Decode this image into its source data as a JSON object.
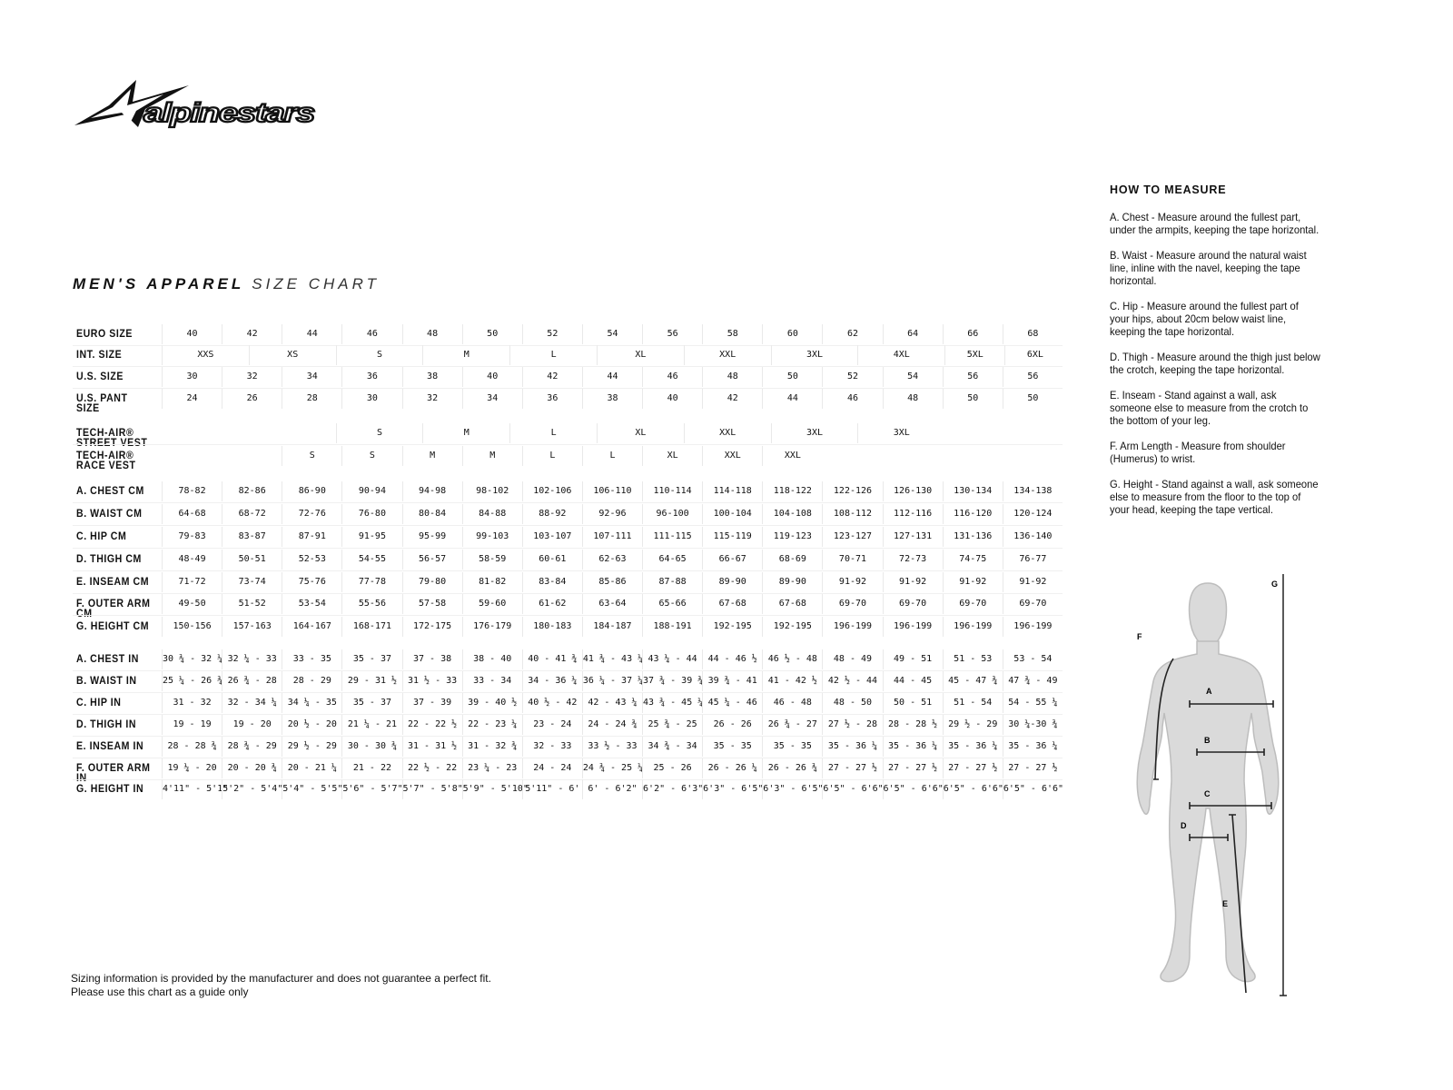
{
  "logo": {
    "text": "alpinestars"
  },
  "title": {
    "bold": "MEN'S APPAREL",
    "light": "SIZE CHART"
  },
  "size_rows": [
    {
      "label": "EURO SIZE",
      "grid": "euro",
      "values": [
        "40",
        "42",
        "44",
        "46",
        "48",
        "50",
        "52",
        "54",
        "56",
        "58",
        "60",
        "62",
        "64",
        "66",
        "68"
      ]
    },
    {
      "label": "INT. SIZE",
      "grid": "int",
      "values": [
        "XXS",
        "XS",
        "S",
        "M",
        "L",
        "XL",
        "XXL",
        "3XL",
        "4XL",
        "5XL",
        "6XL"
      ]
    },
    {
      "label": "U.S. SIZE",
      "grid": "euro",
      "values": [
        "30",
        "32",
        "34",
        "36",
        "38",
        "40",
        "42",
        "44",
        "46",
        "48",
        "50",
        "52",
        "54",
        "56",
        "56"
      ]
    },
    {
      "label": "U.S. PANT SIZE",
      "grid": "euro",
      "values": [
        "24",
        "26",
        "28",
        "30",
        "32",
        "34",
        "36",
        "38",
        "40",
        "42",
        "44",
        "46",
        "48",
        "50",
        "50"
      ]
    }
  ],
  "vest_rows": [
    {
      "label": "TECH-AIR® STREET VEST",
      "grid": "int",
      "values": [
        "",
        "",
        "S",
        "M",
        "L",
        "XL",
        "XXL",
        "3XL",
        "3XL"
      ]
    },
    {
      "label": "TECH-AIR® RACE VEST",
      "grid": "euro",
      "values": [
        "",
        "",
        "S",
        "S",
        "M",
        "M",
        "L",
        "L",
        "XL",
        "XXL",
        "XXL"
      ]
    }
  ],
  "cm_rows": [
    {
      "label": "A. CHEST CM",
      "values": [
        "78-82",
        "82-86",
        "86-90",
        "90-94",
        "94-98",
        "98-102",
        "102-106",
        "106-110",
        "110-114",
        "114-118",
        "118-122",
        "122-126",
        "126-130",
        "130-134",
        "134-138"
      ]
    },
    {
      "label": "B. WAIST CM",
      "values": [
        "64-68",
        "68-72",
        "72-76",
        "76-80",
        "80-84",
        "84-88",
        "88-92",
        "92-96",
        "96-100",
        "100-104",
        "104-108",
        "108-112",
        "112-116",
        "116-120",
        "120-124"
      ]
    },
    {
      "label": "C. HIP CM",
      "values": [
        "79-83",
        "83-87",
        "87-91",
        "91-95",
        "95-99",
        "99-103",
        "103-107",
        "107-111",
        "111-115",
        "115-119",
        "119-123",
        "123-127",
        "127-131",
        "131-136",
        "136-140"
      ]
    },
    {
      "label": "D. THIGH CM",
      "values": [
        "48-49",
        "50-51",
        "52-53",
        "54-55",
        "56-57",
        "58-59",
        "60-61",
        "62-63",
        "64-65",
        "66-67",
        "68-69",
        "70-71",
        "72-73",
        "74-75",
        "76-77"
      ]
    },
    {
      "label": "E. INSEAM CM",
      "values": [
        "71-72",
        "73-74",
        "75-76",
        "77-78",
        "79-80",
        "81-82",
        "83-84",
        "85-86",
        "87-88",
        "89-90",
        "89-90",
        "91-92",
        "91-92",
        "91-92",
        "91-92"
      ]
    },
    {
      "label": "F. OUTER ARM CM",
      "values": [
        "49-50",
        "51-52",
        "53-54",
        "55-56",
        "57-58",
        "59-60",
        "61-62",
        "63-64",
        "65-66",
        "67-68",
        "67-68",
        "69-70",
        "69-70",
        "69-70",
        "69-70"
      ]
    },
    {
      "label": "G. HEIGHT CM",
      "values": [
        "150-156",
        "157-163",
        "164-167",
        "168-171",
        "172-175",
        "176-179",
        "180-183",
        "184-187",
        "188-191",
        "192-195",
        "192-195",
        "196-199",
        "196-199",
        "196-199",
        "196-199"
      ]
    }
  ],
  "in_rows": [
    {
      "label": "A. CHEST IN",
      "values": [
        "30 ¾ - 32 ¼",
        "32 ¼ - 33",
        "33 - 35",
        "35 - 37",
        "37 - 38",
        "38 - 40",
        "40 - 41 ¾",
        "41 ¾ - 43 ¼",
        "43 ¼ - 44",
        "44 - 46 ½",
        "46 ½ - 48",
        "48 - 49",
        "49 - 51",
        "51 - 53",
        "53 - 54"
      ]
    },
    {
      "label": "B. WAIST IN",
      "values": [
        "25 ¼ - 26 ¾",
        "26 ¾ - 28",
        "28 - 29",
        "29 - 31 ½",
        "31 ½ - 33",
        "33 - 34",
        "34 - 36 ¼",
        "36 ¼ - 37 ¼",
        "37 ¾ - 39 ¾",
        "39 ¾ - 41",
        "41 - 42 ½",
        "42 ½ - 44",
        "44 - 45",
        "45 - 47 ¾",
        "47 ¾ - 49"
      ]
    },
    {
      "label": "C. HIP IN",
      "values": [
        "31 - 32",
        "32 - 34 ¼",
        "34 ¼ - 35",
        "35 - 37",
        "37 - 39",
        "39 - 40 ½",
        "40 ½ - 42",
        "42 - 43 ¼",
        "43 ¾ - 45 ¼",
        "45 ¼ - 46",
        "46 - 48",
        "48 - 50",
        "50 - 51",
        "51 - 54",
        "54 - 55 ¼"
      ]
    },
    {
      "label": "D. THIGH IN",
      "values": [
        "19 - 19",
        "19 - 20",
        "20 ½ - 20",
        "21 ¼ - 21",
        "22 - 22 ½",
        "22 - 23 ¼",
        "23 - 24",
        "24 - 24 ¾",
        "25 ¾ - 25",
        "26 - 26",
        "26 ¾ - 27",
        "27 ½ - 28",
        "28 - 28 ½",
        "29 ½ - 29",
        "30 ¼-30 ¾"
      ]
    },
    {
      "label": "E. INSEAM IN",
      "values": [
        "28 - 28 ¾",
        "28 ¾ - 29",
        "29 ½ - 29",
        "30 - 30 ¾",
        "31 - 31 ½",
        "31 - 32 ¾",
        "32 - 33",
        "33 ½ - 33",
        "34 ¾ - 34",
        "35 - 35",
        "35 - 35",
        "35 - 36 ¼",
        "35 - 36 ¼",
        "35 - 36 ¼",
        "35 - 36 ¼"
      ]
    },
    {
      "label": "F. OUTER ARM IN",
      "values": [
        "19 ¼ - 20",
        "20 - 20 ¾",
        "20 - 21 ¼",
        "21 - 22",
        "22 ½ - 22",
        "23 ¼ - 23",
        "24 - 24",
        "24 ¾ - 25 ¼",
        "25 - 26",
        "26 - 26 ¼",
        "26 - 26 ¾",
        "27 - 27 ½",
        "27 - 27 ½",
        "27 - 27 ½",
        "27 - 27 ½"
      ]
    },
    {
      "label": "G. HEIGHT IN",
      "values": [
        "4'11\" - 5'1\"",
        "5'2\" - 5'4\"",
        "5'4\" - 5'5\"",
        "5'6\" - 5'7\"",
        "5'7\" - 5'8\"",
        "5'9\" - 5'10\"",
        "5'11\" - 6'",
        "6' - 6'2\"",
        "6'2\" - 6'3\"",
        "6'3\" - 6'5\"",
        "6'3\" - 6'5\"",
        "6'5\" - 6'6\"",
        "6'5\" - 6'6\"",
        "6'5\" - 6'6\"",
        "6'5\" - 6'6\""
      ]
    }
  ],
  "how_to_measure": {
    "heading": "HOW TO MEASURE",
    "items": [
      "A. Chest - Measure around the fullest part, under the armpits, keeping the tape horizontal.",
      "B. Waist - Measure around the natural waist line, inline with the navel, keeping the tape horizontal.",
      "C. Hip - Measure around the fullest part of your hips, about 20cm below waist line, keeping the tape horizontal.",
      "D. Thigh - Measure around the thigh just below the crotch, keeping the tape horizontal.",
      "E. Inseam - Stand against a wall, ask someone else to measure from the crotch to the bottom of your leg.",
      "F. Arm Length - Measure from shoulder (Humerus) to wrist.",
      "G. Height - Stand against a wall, ask someone else to measure from the floor to the top of your head, keeping the tape vertical."
    ]
  },
  "figure_labels": {
    "a": "A",
    "b": "B",
    "c": "C",
    "d": "D",
    "e": "E",
    "f": "F",
    "g": "G"
  },
  "disclaimer": {
    "line1": "Sizing information is provided by the manufacturer and does not guarantee a perfect fit.",
    "line2": "Please use this chart as a guide only"
  }
}
